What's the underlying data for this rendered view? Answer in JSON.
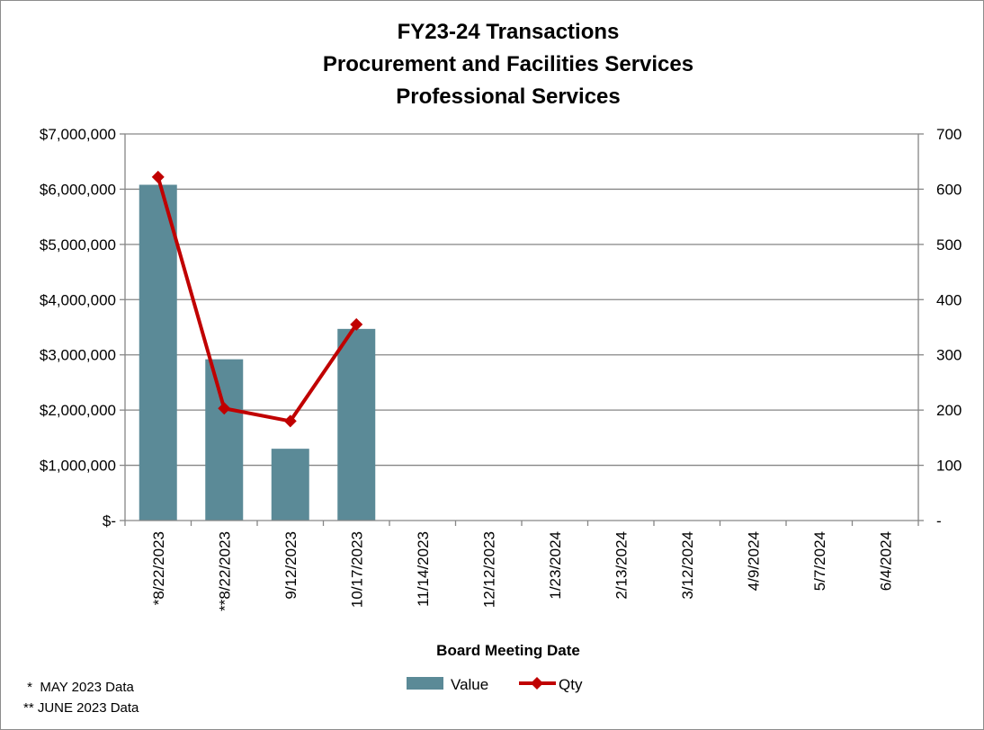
{
  "chart_data": {
    "type": "bar",
    "title_lines": [
      "FY23-24 Transactions",
      "Procurement and Facilities Services",
      "Professional Services"
    ],
    "xlabel": "Board Meeting Date",
    "categories": [
      "*8/22/2023",
      "**8/22/2023",
      "9/12/2023",
      "10/17/2023",
      "11/14/2023",
      "12/12/2023",
      "1/23/2024",
      "2/13/2024",
      "3/12/2024",
      "4/9/2024",
      "5/7/2024",
      "6/4/2024"
    ],
    "series": [
      {
        "name": "Value",
        "type": "bar",
        "axis": "left",
        "color": "#5b8a97",
        "values": [
          6080000,
          2920000,
          1300000,
          3470000,
          null,
          null,
          null,
          null,
          null,
          null,
          null,
          null
        ]
      },
      {
        "name": "Qty",
        "type": "line",
        "axis": "right",
        "color": "#c00000",
        "values": [
          622,
          203,
          180,
          355,
          null,
          null,
          null,
          null,
          null,
          null,
          null,
          null
        ]
      }
    ],
    "y_left": {
      "min": 0,
      "max": 7000000,
      "ticks": [
        0,
        1000000,
        2000000,
        3000000,
        4000000,
        5000000,
        6000000,
        7000000
      ],
      "tick_labels": [
        "$-",
        "$1,000,000",
        "$2,000,000",
        "$3,000,000",
        "$4,000,000",
        "$5,000,000",
        "$6,000,000",
        "$7,000,000"
      ]
    },
    "y_right": {
      "min": 0,
      "max": 700,
      "ticks": [
        0,
        100,
        200,
        300,
        400,
        500,
        600,
        700
      ],
      "tick_labels": [
        "-",
        "100",
        "200",
        "300",
        "400",
        "500",
        "600",
        "700"
      ]
    },
    "grid": true,
    "legend_position": "bottom",
    "notes": [
      " *  MAY 2023 Data",
      "** JUNE 2023 Data"
    ]
  }
}
